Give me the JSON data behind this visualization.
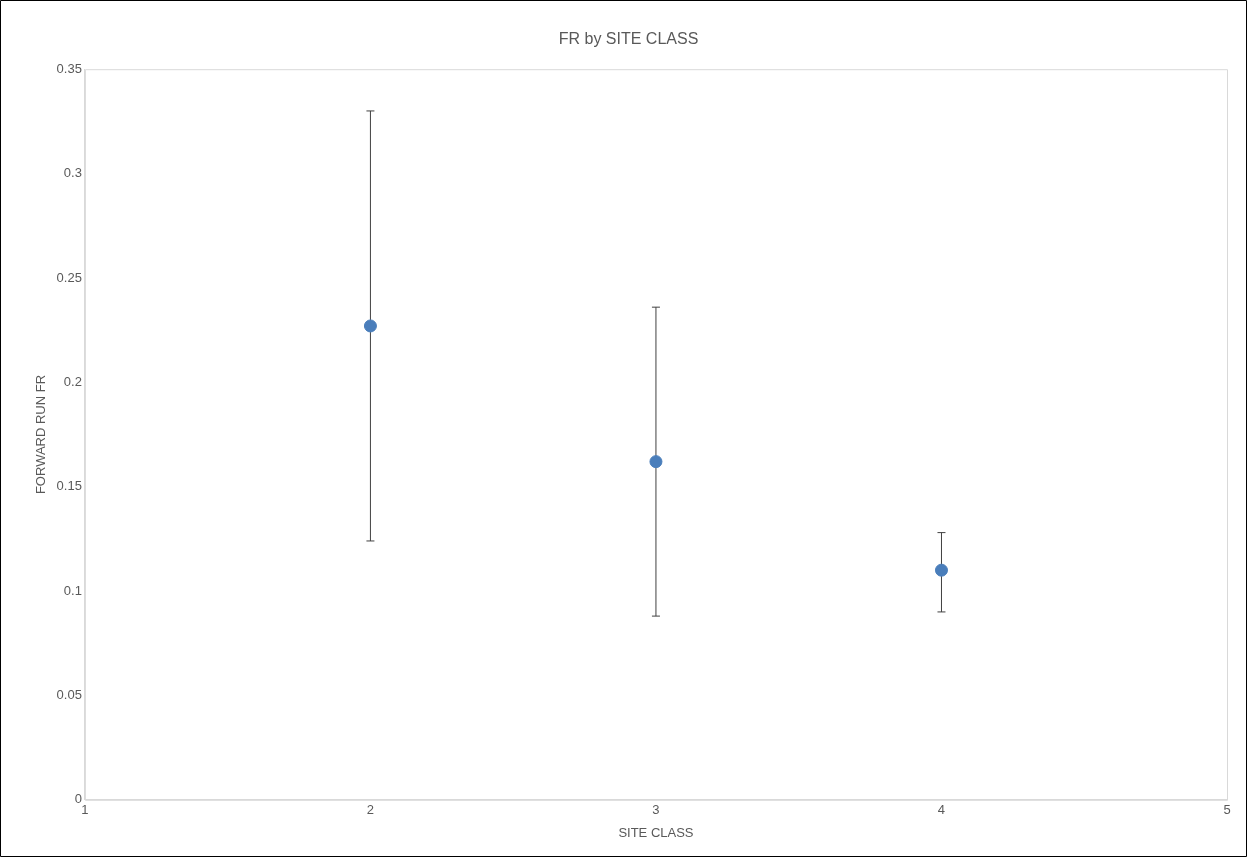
{
  "chart_data": {
    "type": "scatter",
    "title": "FR by SITE CLASS",
    "xlabel": "SITE CLASS",
    "ylabel": "FORWARD RUN FR",
    "x": [
      2,
      3,
      4
    ],
    "series": [
      {
        "color": "#4a7ebb",
        "values": [
          0.227,
          0.162,
          0.11
        ],
        "errors": [
          [
            0.124,
            0.33
          ],
          [
            0.088,
            0.236
          ],
          [
            0.09,
            0.128
          ]
        ]
      }
    ],
    "xlim": [
      1,
      5
    ],
    "xticks": [
      1,
      2,
      3,
      4,
      5
    ],
    "ylim": [
      0,
      0.35
    ],
    "yticks": [
      0,
      0.05,
      0.1,
      0.15,
      0.2,
      0.25,
      0.3,
      0.35
    ],
    "grid": false,
    "legend": false,
    "marker": "circle"
  }
}
